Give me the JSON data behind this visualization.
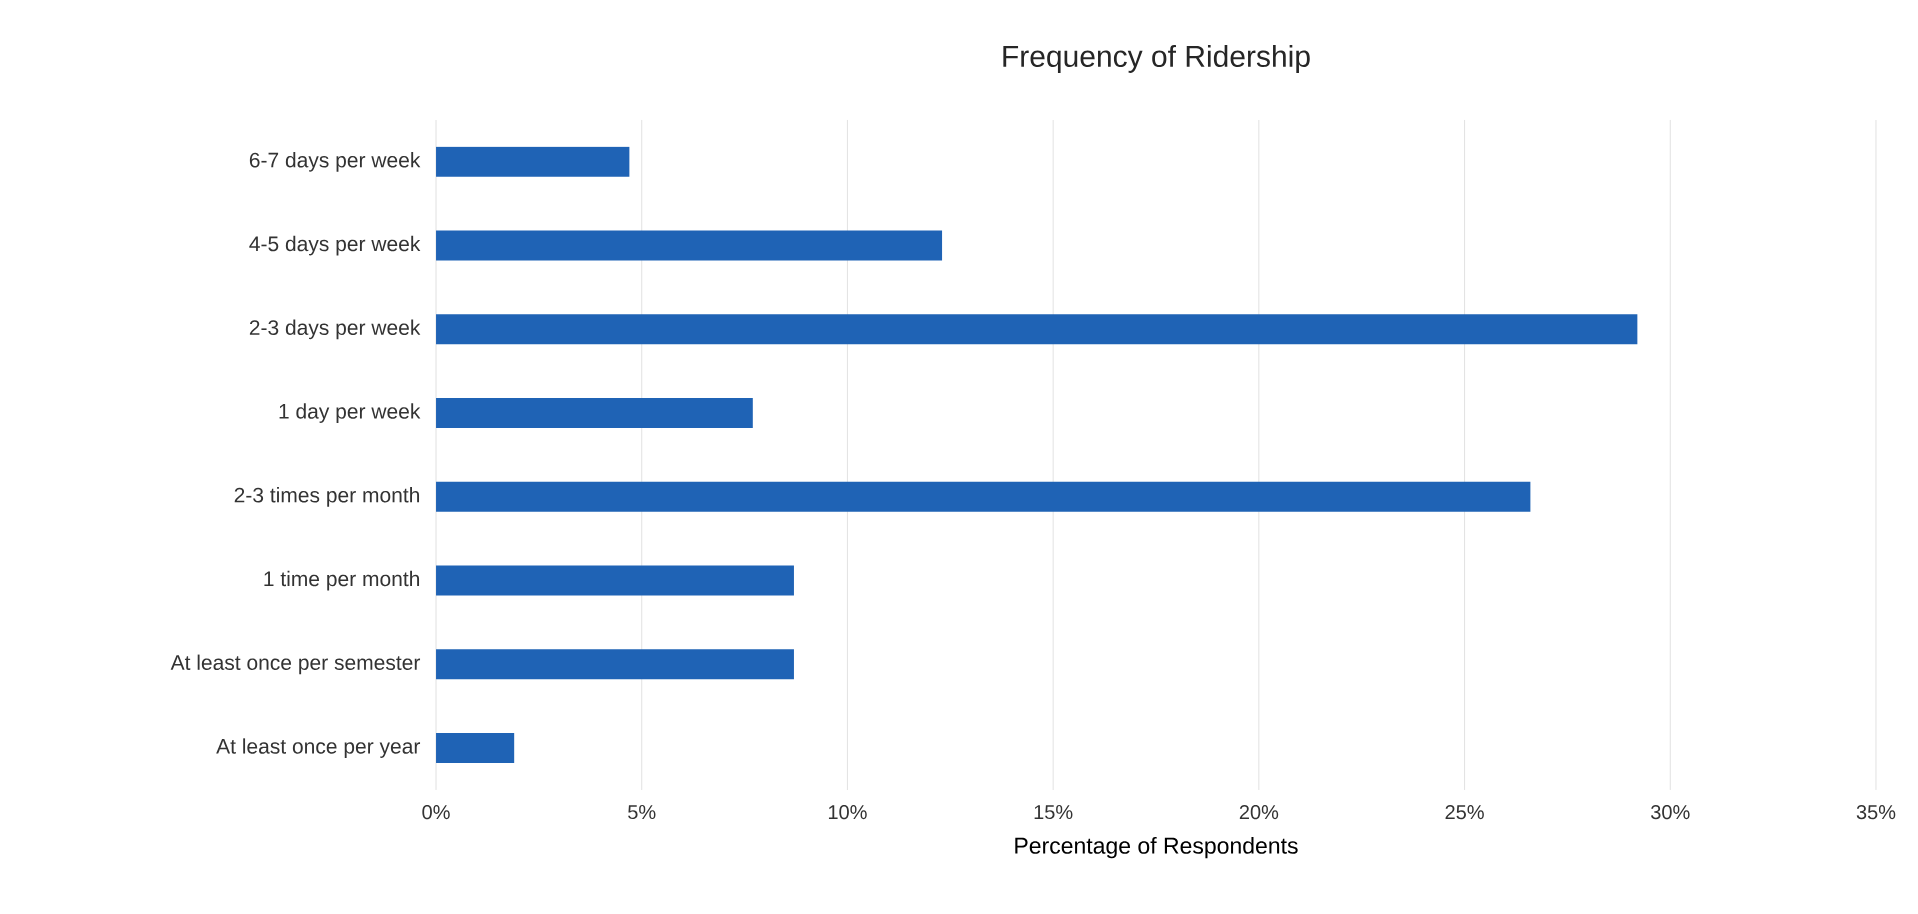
{
  "chart_data": {
    "type": "bar",
    "orientation": "horizontal",
    "title": "Frequency of Ridership",
    "xlabel": "Percentage of Respondents",
    "categories": [
      "6-7 days per week",
      "4-5 days per week",
      "2-3 days per week",
      "1 day per week",
      "2-3 times per month",
      "1 time per month",
      "At least once per semester",
      "At least once per year"
    ],
    "values": [
      4.7,
      12.3,
      29.2,
      7.7,
      26.6,
      8.7,
      8.7,
      1.9
    ],
    "color": "#1f63b5",
    "xlim": [
      0,
      35
    ],
    "xticks": [
      {
        "value": 0,
        "label": "0%"
      },
      {
        "value": 5,
        "label": "5%"
      },
      {
        "value": 10,
        "label": "10%"
      },
      {
        "value": 15,
        "label": "15%"
      },
      {
        "value": 20,
        "label": "20%"
      },
      {
        "value": 25,
        "label": "25%"
      },
      {
        "value": 30,
        "label": "30%"
      },
      {
        "value": 35,
        "label": "35%"
      }
    ],
    "grid": "x"
  }
}
